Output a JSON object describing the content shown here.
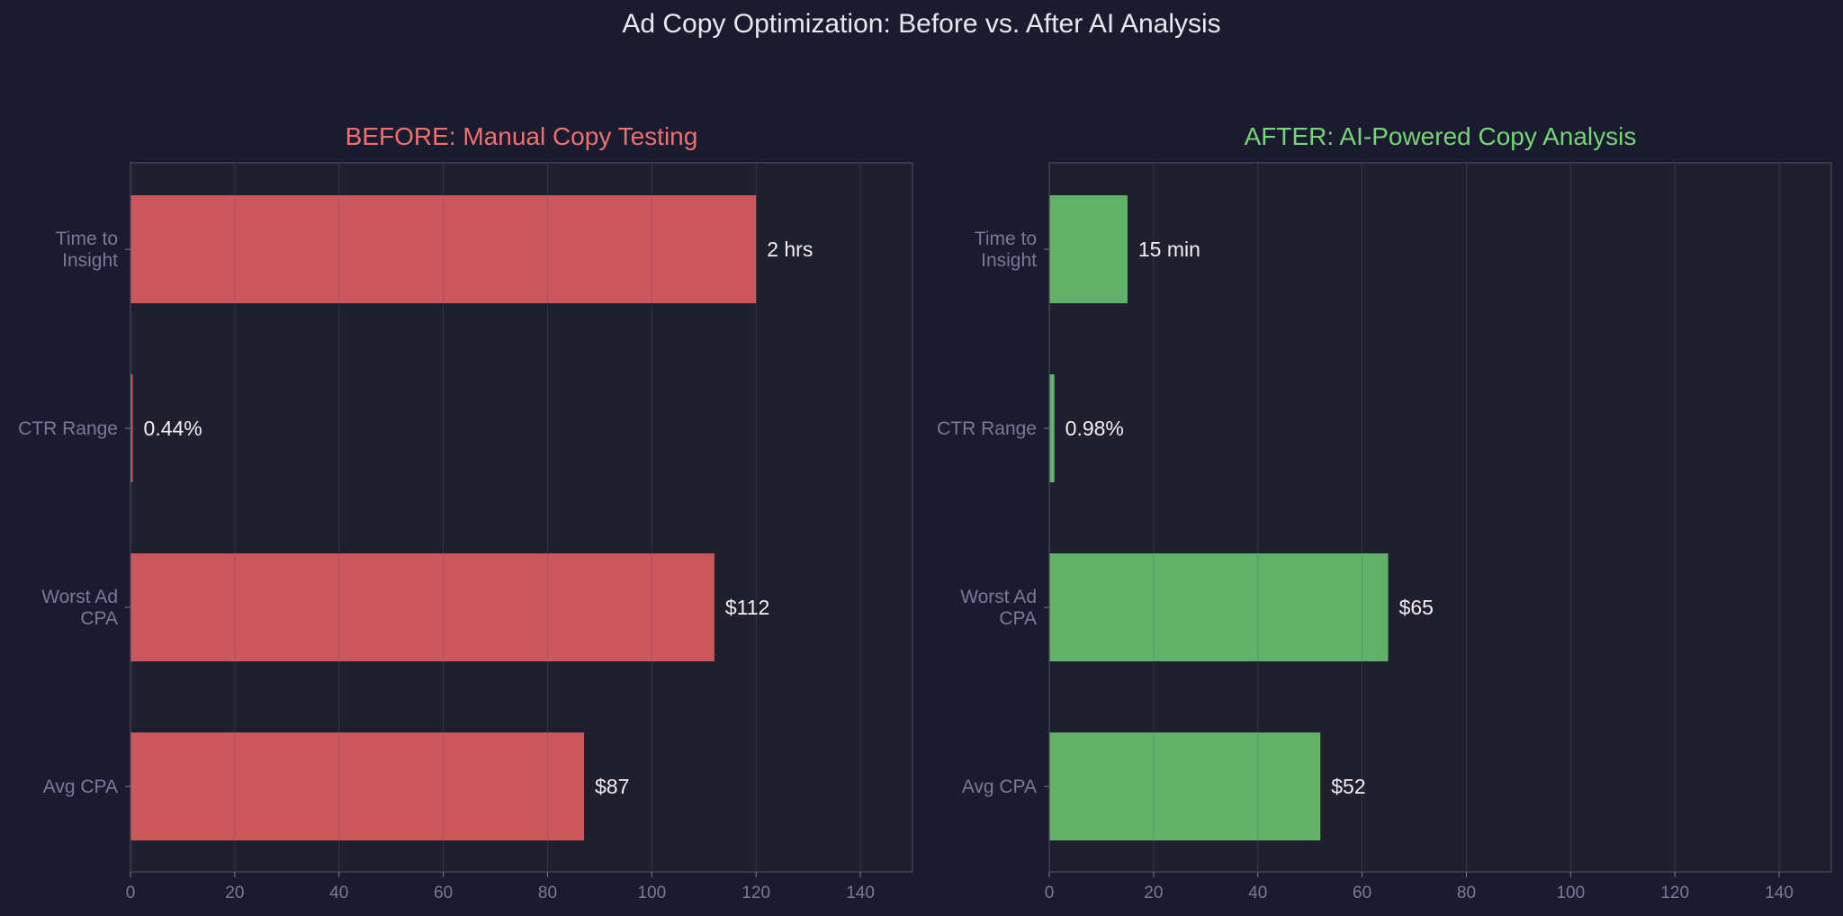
{
  "figure": {
    "title": "Ad Copy Optimization: Before vs. After AI Analysis",
    "colors": {
      "background": "#1a1b2e",
      "panel": "#1f1f2e",
      "spine": "#4a4a5e",
      "grid": "#34354a",
      "tick_text": "#7a7a98",
      "title_text": "#e8e8f0",
      "label_text": "#f0f0f5"
    }
  },
  "chart_data": [
    {
      "type": "bar",
      "orientation": "horizontal",
      "title": "BEFORE: Manual Copy Testing",
      "title_color": "#f07070",
      "bar_color": "#d45c5f",
      "categories": [
        "Time to\nInsight",
        "CTR Range",
        "Worst Ad\nCPA",
        "Avg CPA"
      ],
      "values": [
        120,
        0.44,
        112,
        87
      ],
      "data_labels": [
        "2 hrs",
        "0.44%",
        "$112",
        "$87"
      ],
      "xlim": [
        0,
        150
      ],
      "xticks": [
        0,
        20,
        40,
        60,
        80,
        100,
        120,
        140
      ],
      "grid": "x"
    },
    {
      "type": "bar",
      "orientation": "horizontal",
      "title": "AFTER: AI-Powered Copy Analysis",
      "title_color": "#74d674",
      "bar_color": "#66b96b",
      "categories": [
        "Time to\nInsight",
        "CTR Range",
        "Worst Ad\nCPA",
        "Avg CPA"
      ],
      "values": [
        15,
        0.98,
        65,
        52
      ],
      "data_labels": [
        "15 min",
        "0.98%",
        "$65",
        "$52"
      ],
      "xlim": [
        0,
        150
      ],
      "xticks": [
        0,
        20,
        40,
        60,
        80,
        100,
        120,
        140
      ],
      "grid": "x"
    }
  ]
}
